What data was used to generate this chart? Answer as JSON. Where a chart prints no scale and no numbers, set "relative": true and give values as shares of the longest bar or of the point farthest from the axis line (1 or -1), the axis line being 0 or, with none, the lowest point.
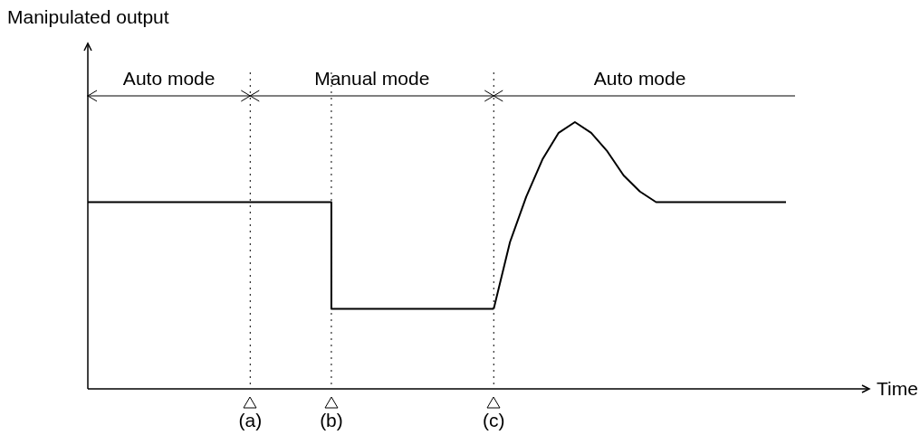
{
  "chart_data": {
    "type": "line",
    "relative": true,
    "line_style": "solid",
    "marker": "none",
    "legend": false,
    "categories": [
      null,
      null,
      null,
      null,
      null,
      null,
      null,
      null,
      null,
      null,
      "(a)",
      null,
      null,
      null,
      null,
      "(b)",
      null,
      null,
      null,
      null,
      null,
      null,
      null,
      null,
      null,
      "(c)",
      null,
      null,
      null,
      null,
      null,
      null,
      null,
      null,
      null,
      null,
      null,
      null,
      null,
      null,
      null,
      null,
      null,
      null
    ],
    "series": [
      {
        "type": "step",
        "color": "#000000",
        "values": [
          0.7,
          0.7,
          0.7,
          0.7,
          0.7,
          0.7,
          0.7,
          0.7,
          0.7,
          0.7,
          0.7,
          0.7,
          0.7,
          0.7,
          0.7,
          0.3,
          0.3,
          0.3,
          0.3,
          0.3,
          0.3,
          0.3,
          0.3,
          0.3,
          0.3,
          0.3,
          null,
          null,
          null,
          null,
          null,
          null,
          null,
          null,
          null,
          null,
          null,
          null,
          null,
          null,
          null,
          null,
          null,
          null
        ]
      },
      {
        "type": "line",
        "color": "#000000",
        "values": [
          null,
          null,
          null,
          null,
          null,
          null,
          null,
          null,
          null,
          null,
          null,
          null,
          null,
          null,
          null,
          null,
          null,
          null,
          null,
          null,
          null,
          null,
          null,
          null,
          null,
          0.3,
          0.55,
          0.72,
          0.86,
          0.96,
          1,
          0.96,
          0.89,
          0.8,
          0.74,
          0.7,
          0.7,
          0.7,
          0.7,
          0.7,
          0.7,
          0.7,
          0.7,
          0.7
        ]
      }
    ],
    "ref_lines": [
      {
        "axis": "x",
        "value": "(a)",
        "line_style": "dotted"
      },
      {
        "axis": "x",
        "value": "(b)",
        "line_style": "dotted"
      },
      {
        "axis": "x",
        "value": "(c)",
        "line_style": "dotted"
      }
    ],
    "annotations": [
      "Manipulated output",
      "Auto mode",
      "Manual mode",
      "Auto mode",
      "Time"
    ]
  }
}
